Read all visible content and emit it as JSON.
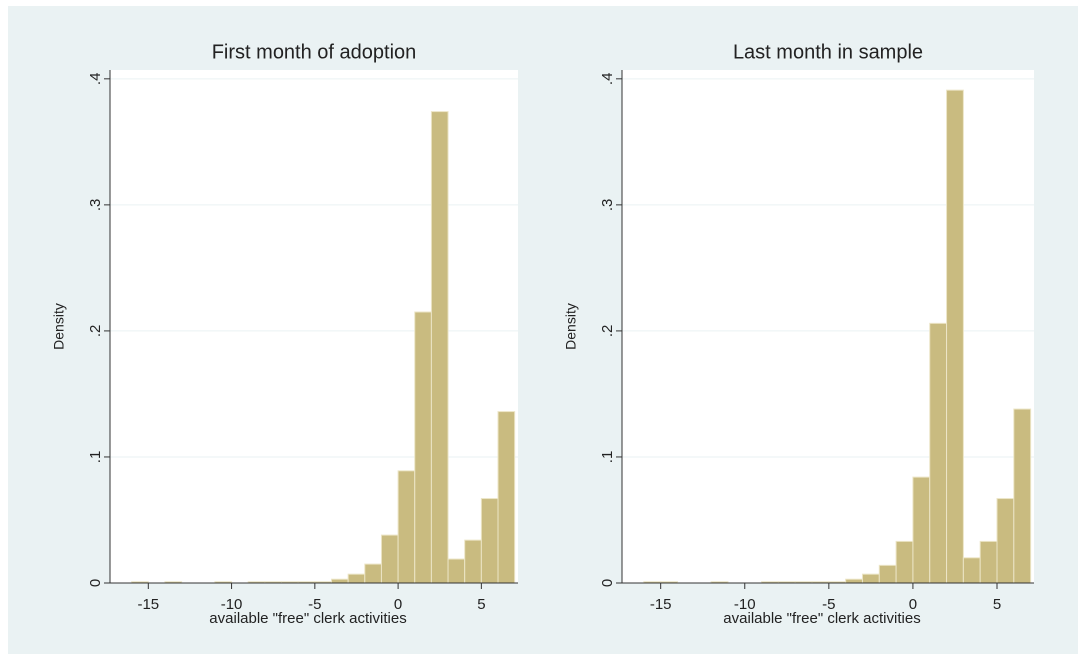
{
  "chart_data": [
    {
      "type": "histogram",
      "title": "First month of adoption",
      "xlabel": "available \"free\" clerk activities",
      "ylabel": "Density",
      "bins": [
        -17,
        -16,
        -15,
        -14,
        -13,
        -12,
        -11,
        -10,
        -9,
        -8,
        -7,
        -6,
        -5,
        -4,
        -3,
        -2,
        -1,
        0,
        1,
        2,
        3,
        4,
        5,
        6,
        7
      ],
      "values": [
        0,
        0.001,
        0,
        0.001,
        0,
        0,
        0.001,
        0,
        0.001,
        0.001,
        0.001,
        0.001,
        0.001,
        0.003,
        0.007,
        0.015,
        0.038,
        0.089,
        0.215,
        0.374,
        0.019,
        0.034,
        0.067,
        0.136
      ],
      "color": "#c9bb80",
      "xlim": [
        -17.3,
        7.2
      ],
      "xticks": [
        -15,
        -10,
        -5,
        0,
        5
      ],
      "ylim": [
        0,
        0.407
      ],
      "yticks": [
        0,
        {
          "value": 0.1,
          "label": ".1"
        },
        {
          "value": 0.2,
          "label": ".2"
        },
        {
          "value": 0.3,
          "label": ".3"
        },
        {
          "value": 0.4,
          "label": ".4"
        }
      ],
      "grid": true
    },
    {
      "type": "histogram",
      "title": "Last month in sample",
      "xlabel": "available \"free\" clerk activities",
      "ylabel": "Density",
      "bins": [
        -17,
        -16,
        -15,
        -14,
        -13,
        -12,
        -11,
        -10,
        -9,
        -8,
        -7,
        -6,
        -5,
        -4,
        -3,
        -2,
        -1,
        0,
        1,
        2,
        3,
        4,
        5,
        6,
        7
      ],
      "values": [
        0,
        0.001,
        0.001,
        0,
        0,
        0.001,
        0,
        0,
        0.001,
        0.001,
        0.001,
        0.001,
        0.001,
        0.003,
        0.007,
        0.014,
        0.033,
        0.084,
        0.206,
        0.391,
        0.02,
        0.033,
        0.067,
        0.138
      ],
      "color": "#c9bb80",
      "xlim": [
        -17.3,
        7.2
      ],
      "xticks": [
        -15,
        -10,
        -5,
        0,
        5
      ],
      "ylim": [
        0,
        0.407
      ],
      "yticks": [
        0,
        {
          "value": 0.1,
          "label": ".1"
        },
        {
          "value": 0.2,
          "label": ".2"
        },
        {
          "value": 0.3,
          "label": ".3"
        },
        {
          "value": 0.4,
          "label": ".4"
        }
      ],
      "grid": true
    }
  ]
}
